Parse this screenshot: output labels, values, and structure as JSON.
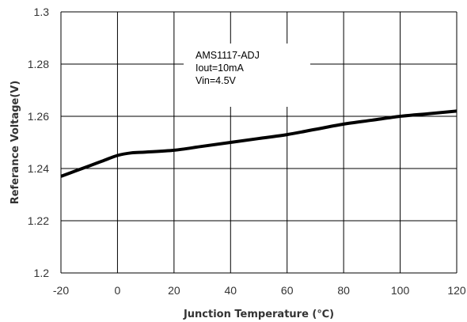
{
  "chart_data": {
    "type": "line",
    "title": "",
    "xlabel": "Junction Temperature (℃)",
    "ylabel": "Referance Voltage(V)",
    "xlim": [
      -20,
      120
    ],
    "ylim": [
      1.2,
      1.3
    ],
    "x_ticks": [
      "-20",
      "0",
      "20",
      "40",
      "60",
      "80",
      "100",
      "120"
    ],
    "y_ticks": [
      "1.2",
      "1.22",
      "1.24",
      "1.26",
      "1.28",
      "1.3"
    ],
    "grid": true,
    "annotation": [
      "AMS1117-ADJ",
      "Iout=10mA",
      "Vin=4.5V"
    ],
    "series": [
      {
        "color": "#000000",
        "x": [
          -20,
          -15,
          -10,
          -5,
          0,
          5,
          10,
          20,
          30,
          40,
          50,
          60,
          70,
          80,
          90,
          100,
          110,
          120
        ],
        "values": [
          1.237,
          1.239,
          1.241,
          1.243,
          1.245,
          1.246,
          1.2463,
          1.247,
          1.2485,
          1.25,
          1.2515,
          1.253,
          1.255,
          1.257,
          1.2585,
          1.26,
          1.261,
          1.262
        ]
      }
    ]
  }
}
